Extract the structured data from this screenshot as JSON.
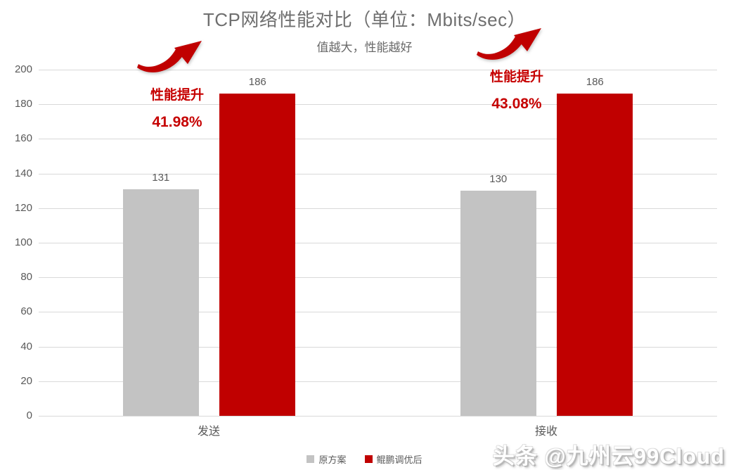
{
  "chart_data": {
    "type": "bar",
    "title": "TCP网络性能对比（单位：Mbits/sec）",
    "subtitle": "值越大，性能越好",
    "categories": [
      "发送",
      "接收"
    ],
    "series": [
      {
        "name": "原方案",
        "color": "#c3c3c3",
        "values": [
          131,
          130
        ]
      },
      {
        "name": "鲲鹏调优后",
        "color": "#c00000",
        "values": [
          186,
          186
        ]
      }
    ],
    "data_labels": true,
    "ylim": [
      0,
      200
    ],
    "yticks": [
      0,
      20,
      40,
      60,
      80,
      100,
      120,
      140,
      160,
      180,
      200
    ],
    "grid": true,
    "legend_position": "bottom",
    "annotations": [
      {
        "label": "性能提升",
        "value": "41.98%",
        "position": "above-left-group"
      },
      {
        "label": "性能提升",
        "value": "43.08%",
        "position": "above-right-group"
      }
    ],
    "colors": {
      "grid": "#d9d9d9",
      "axis_text": "#595959",
      "title_text": "#6f6f6f",
      "annotation_text": "#c60000",
      "arrow": "#c00000"
    }
  },
  "watermark": {
    "text": "头条 @九州云99Cloud"
  }
}
